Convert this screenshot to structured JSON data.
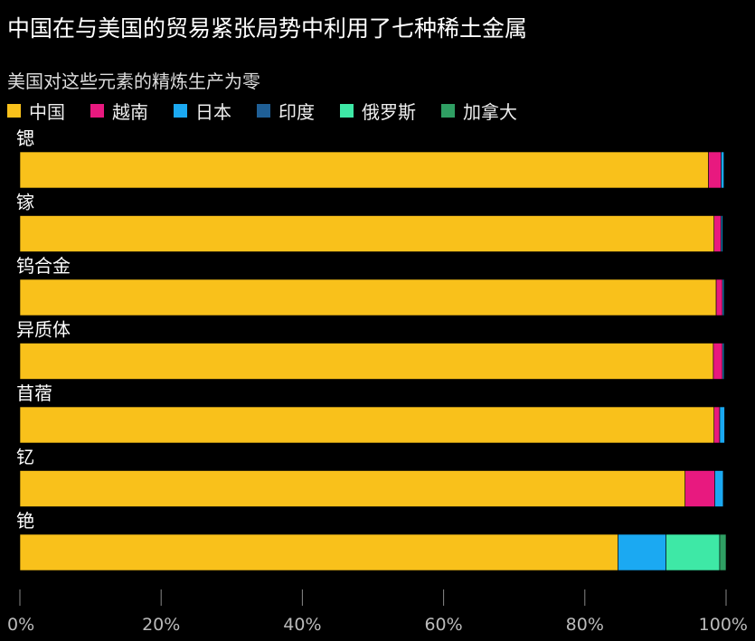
{
  "title": "中国在与美国的贸易紧张局势中利用了七种稀土金属",
  "subtitle": "美国对这些元素的精炼生产为零",
  "colors": {
    "中国": "#f9c11b",
    "越南": "#e8197f",
    "日本": "#1ba9f2",
    "印度": "#1f5f96",
    "俄罗斯": "#3ee8a6",
    "加拿大": "#2f9f63"
  },
  "chart_data": {
    "type": "bar",
    "orientation": "horizontal",
    "stacked": true,
    "categories": [
      "锶",
      "镓",
      "钨合金",
      "异质体",
      "苜蓿",
      "钇",
      "铯"
    ],
    "series": [
      {
        "name": "中国",
        "values": [
          97.5,
          98.3,
          98.6,
          98.2,
          98.3,
          94.2,
          84.7
        ]
      },
      {
        "name": "越南",
        "values": [
          1.8,
          1.0,
          0.9,
          1.3,
          0.8,
          4.2,
          0
        ]
      },
      {
        "name": "日本",
        "values": [
          0.4,
          0.2,
          0.2,
          0.2,
          0.7,
          1.2,
          6.8
        ]
      },
      {
        "name": "印度",
        "values": [
          0,
          0,
          0,
          0,
          0,
          0,
          0
        ]
      },
      {
        "name": "俄罗斯",
        "values": [
          0,
          0,
          0,
          0,
          0,
          0,
          7.6
        ]
      },
      {
        "name": "加拿大",
        "values": [
          0,
          0,
          0,
          0,
          0,
          0,
          0.9
        ]
      }
    ],
    "x_ticks": [
      "0%",
      "20%",
      "40%",
      "60%",
      "80%",
      "100%"
    ],
    "xlim": [
      0,
      100
    ],
    "xlabel": "",
    "ylabel": "",
    "legend": "top",
    "grid": false
  }
}
